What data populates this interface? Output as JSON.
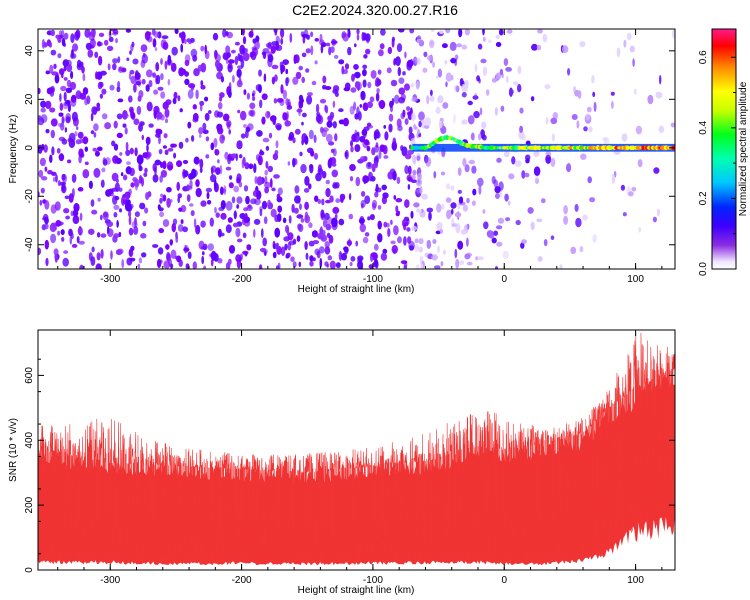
{
  "title": "C2E2.2024.320.00.27.R16",
  "chart_data": [
    {
      "type": "heatmap",
      "title": "",
      "xlabel": "Height of straight line (km)",
      "ylabel": "Frequency (Hz)",
      "xlim": [
        -355,
        130
      ],
      "ylim": [
        -50,
        49
      ],
      "x_ticks": [
        -300,
        -200,
        -100,
        0,
        100
      ],
      "y_ticks": [
        -40,
        -20,
        0,
        20,
        40
      ],
      "colorbar": {
        "label": "Normalized spectral amplitude",
        "range": [
          0,
          0.68
        ],
        "ticks": [
          0.0,
          0.2,
          0.4,
          0.6
        ],
        "tick_labels": [
          "0.0",
          "0.2",
          "0.4",
          "0.6"
        ]
      },
      "features": {
        "background_noise_amplitude": 0.1,
        "noise_fades_after_km": -70,
        "signal_line": {
          "frequency_hz": 0,
          "starts_km": -70,
          "wiggle_region_km": [
            -60,
            -15
          ],
          "wiggle_peak_hz": 5,
          "amplitude_start": 0.35,
          "amplitude_end": 0.65
        }
      },
      "grid": false,
      "legend": "none"
    },
    {
      "type": "line",
      "title": "",
      "xlabel": "Height of straight line (km)",
      "ylabel": "SNR (10 * v/v)",
      "xlim": [
        -355,
        130
      ],
      "ylim": [
        0,
        740
      ],
      "x_ticks": [
        -300,
        -200,
        -100,
        0,
        100
      ],
      "y_ticks": [
        0,
        200,
        400,
        600
      ],
      "color": "#f03333",
      "envelope": [
        {
          "x": -355,
          "low": 25,
          "high": 370,
          "peak": 450
        },
        {
          "x": -300,
          "low": 25,
          "high": 330,
          "peak": 470
        },
        {
          "x": -250,
          "low": 20,
          "high": 320,
          "peak": 380
        },
        {
          "x": -200,
          "low": 22,
          "high": 310,
          "peak": 360
        },
        {
          "x": -150,
          "low": 20,
          "high": 300,
          "peak": 360
        },
        {
          "x": -100,
          "low": 22,
          "high": 320,
          "peak": 380
        },
        {
          "x": -50,
          "low": 25,
          "high": 340,
          "peak": 440
        },
        {
          "x": -20,
          "low": 25,
          "high": 380,
          "peak": 500
        },
        {
          "x": 0,
          "low": 20,
          "high": 370,
          "peak": 490
        },
        {
          "x": 30,
          "low": 20,
          "high": 390,
          "peak": 430
        },
        {
          "x": 60,
          "low": 30,
          "high": 420,
          "peak": 470
        },
        {
          "x": 80,
          "low": 60,
          "high": 500,
          "peak": 560
        },
        {
          "x": 100,
          "low": 120,
          "high": 560,
          "peak": 740
        },
        {
          "x": 130,
          "low": 150,
          "high": 620,
          "peak": 680
        }
      ],
      "grid": false,
      "legend": "none"
    }
  ]
}
